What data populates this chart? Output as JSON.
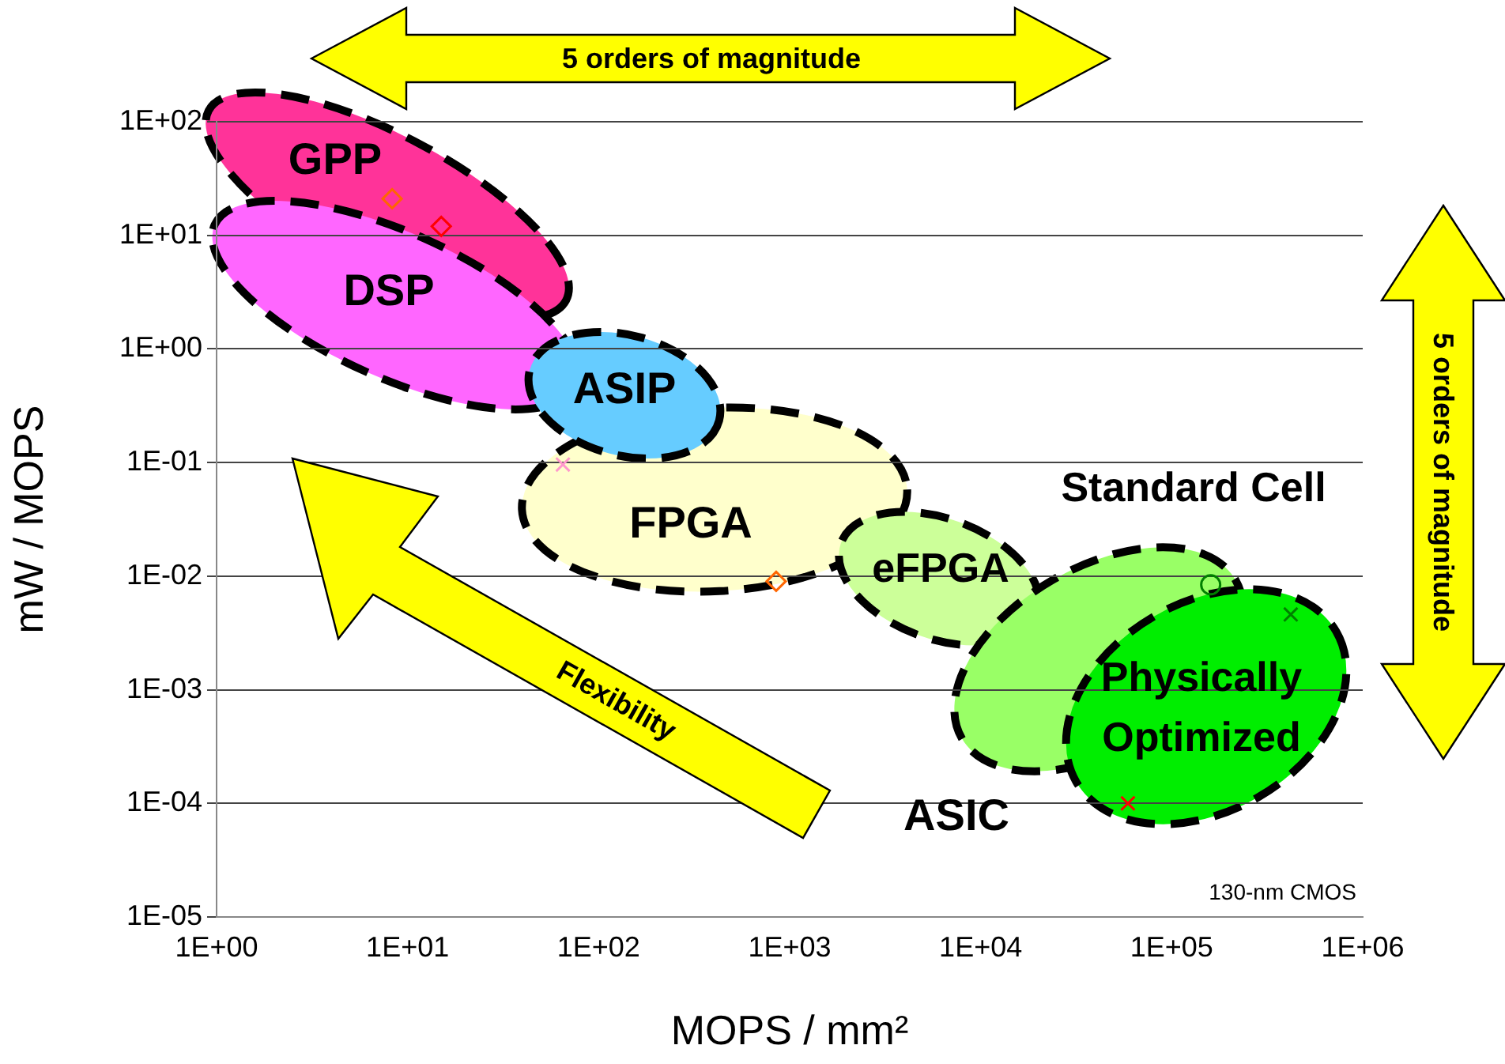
{
  "chart_data": {
    "type": "scatter",
    "xlabel": "MOPS / mm²",
    "ylabel": "mW / MOPS",
    "log": "xy",
    "grid": "y",
    "legend": false,
    "xlim": [
      1,
      1000000
    ],
    "xticks": [
      {
        "value": 1,
        "label": "1E+00"
      },
      {
        "value": 10,
        "label": "1E+01"
      },
      {
        "value": 100,
        "label": "1E+02"
      },
      {
        "value": 1000,
        "label": "1E+03"
      },
      {
        "value": 10000,
        "label": "1E+04"
      },
      {
        "value": 100000,
        "label": "1E+05"
      },
      {
        "value": 1000000,
        "label": "1E+06"
      }
    ],
    "ylim": [
      1e-05,
      100
    ],
    "yticks": [
      {
        "value": 1e-05,
        "label": "1E-05"
      },
      {
        "value": 0.0001,
        "label": "1E-04"
      },
      {
        "value": 0.001,
        "label": "1E-03"
      },
      {
        "value": 0.01,
        "label": "1E-02"
      },
      {
        "value": 0.1,
        "label": "1E-01"
      },
      {
        "value": 1,
        "label": "1E+00"
      },
      {
        "value": 10,
        "label": "1E+01"
      },
      {
        "value": 100,
        "label": "1E+02"
      }
    ],
    "series": [
      {
        "color": "#ff6600",
        "marker": "diamond",
        "x": [
          8.3
        ],
        "values": [
          21
        ]
      },
      {
        "color": "#ff0000",
        "marker": "diamond",
        "x": [
          15
        ],
        "values": [
          12
        ]
      },
      {
        "color": "#ff99cc",
        "marker": "cross",
        "x": [
          65
        ],
        "values": [
          0.096
        ]
      },
      {
        "color": "#ff6600",
        "marker": "diamond",
        "x": [
          850
        ],
        "values": [
          0.009
        ]
      },
      {
        "color": "#008000",
        "marker": "circle",
        "x": [
          160000
        ],
        "values": [
          0.0084
        ]
      },
      {
        "color": "#008000",
        "marker": "cross",
        "x": [
          420000
        ],
        "values": [
          0.0046
        ]
      },
      {
        "color": "#ff0000",
        "marker": "cross",
        "x": [
          59000
        ],
        "values": [
          0.0001
        ]
      }
    ],
    "annotations": [
      "GPP",
      "DSP",
      "ASIP",
      "FPGA",
      "eFPGA",
      "Standard Cell",
      "Physically\nOptimized",
      "ASIC",
      "5 orders of magnitude",
      "5 orders of magnitude",
      "Flexibility",
      "130-nm CMOS"
    ]
  }
}
